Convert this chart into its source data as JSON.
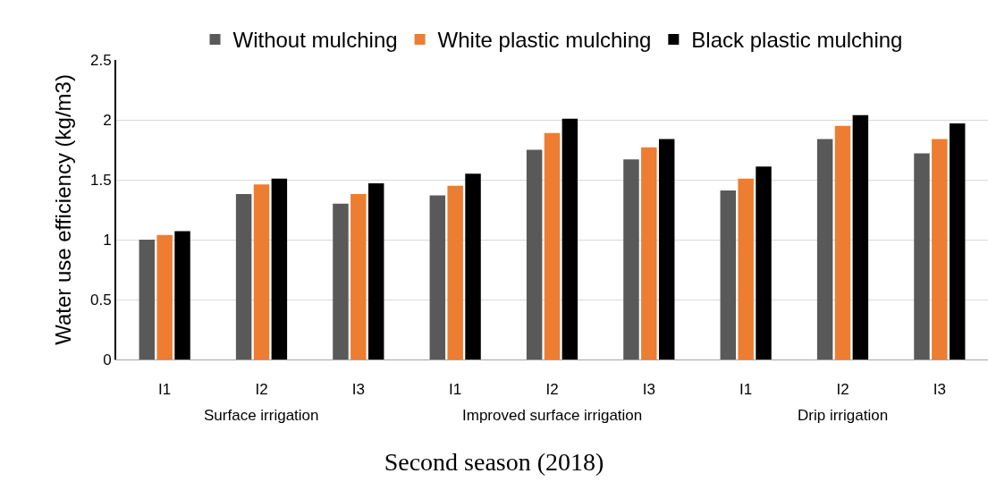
{
  "chart_data": {
    "type": "bar",
    "title": "Second season (2018)",
    "ylabel": "Water use efficiency (kg/m3)",
    "categories": [
      "I1",
      "I2",
      "I3",
      "I1",
      "I2",
      "I3",
      "I1",
      "I2",
      "I3"
    ],
    "annotations": [
      "Surface irrigation",
      "Improved surface irrigation",
      "Drip irrigation"
    ],
    "series": [
      {
        "name": "Without mulching",
        "color": "#595959",
        "values": [
          1.0,
          1.38,
          1.3,
          1.37,
          1.75,
          1.67,
          1.41,
          1.84,
          1.72
        ]
      },
      {
        "name": "White plastic mulching",
        "color": "#ed7d31",
        "values": [
          1.04,
          1.46,
          1.38,
          1.45,
          1.89,
          1.77,
          1.51,
          1.95,
          1.84
        ]
      },
      {
        "name": "Black plastic mulching",
        "color": "#000000",
        "values": [
          1.07,
          1.51,
          1.47,
          1.55,
          2.01,
          1.84,
          1.61,
          2.04,
          1.97
        ]
      }
    ],
    "ylim": [
      0,
      2.5
    ],
    "yticks": [
      0,
      0.5,
      1,
      1.5,
      2,
      2.5
    ],
    "grid": "y",
    "legend": "top"
  }
}
